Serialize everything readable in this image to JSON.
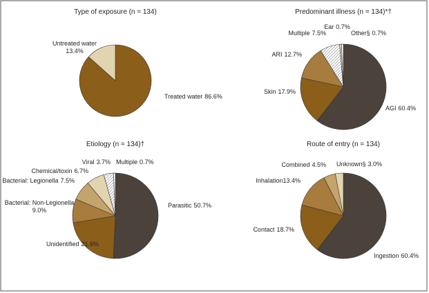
{
  "chart_data": [
    {
      "type": "pie",
      "title": "Type of exposure (n = 134)",
      "categories": [
        "Treated water",
        "Untreated water"
      ],
      "values": [
        86.6,
        13.4
      ],
      "value_labels": [
        "86.6%",
        "13.4%"
      ],
      "colors": [
        "#8b5e1a",
        "#e3d4b0"
      ]
    },
    {
      "type": "pie",
      "title": "Predominant illness (n = 134)*†",
      "categories": [
        "AGI",
        "Skin",
        "ARI",
        "Multiple",
        "Ear",
        "Other§"
      ],
      "values": [
        60.4,
        17.9,
        12.7,
        7.5,
        0.7,
        0.7
      ],
      "value_labels": [
        "60.4%",
        "17.9%",
        "12.7%",
        "7.5%",
        "0.7%",
        "0.7%"
      ],
      "colors": [
        "#4a423b",
        "#8b5e1a",
        "#a87c3c",
        "hatch",
        "#e3d4b0",
        "#ffffff"
      ]
    },
    {
      "type": "pie",
      "title": "Etiology (n = 134)†",
      "categories": [
        "Parasitic",
        "Unidentified",
        "Bacterial: Non-Legionella",
        "Bacterial: Legionella",
        "Chemical/toxin",
        "Viral",
        "Multiple"
      ],
      "values": [
        50.7,
        21.6,
        9.0,
        7.5,
        6.7,
        3.7,
        0.7
      ],
      "value_labels": [
        "50.7%",
        "21.6%",
        "9.0%",
        "7.5%",
        "6.7%",
        "3.7%",
        "0.7%"
      ],
      "colors": [
        "#4a423b",
        "#8b5e1a",
        "#a87c3c",
        "#c4a46c",
        "#e3d4b0",
        "hatch",
        "#ffffff"
      ]
    },
    {
      "type": "pie",
      "title": "Route of entry (n = 134)",
      "categories": [
        "Ingestion",
        "Contact",
        "Inhalation",
        "Combined",
        "Unknown§"
      ],
      "values": [
        60.4,
        18.7,
        13.4,
        4.5,
        3.0
      ],
      "value_labels": [
        "60.4%",
        "18.7%",
        "13.4%",
        "4.5%",
        "3.0%"
      ],
      "colors": [
        "#4a423b",
        "#8b5e1a",
        "#a87c3c",
        "#c4a46c",
        "#e3d4b0"
      ]
    }
  ]
}
